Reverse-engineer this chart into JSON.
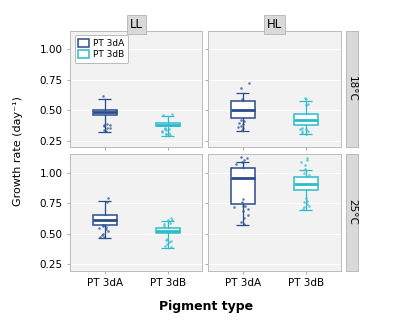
{
  "title": "",
  "xlabel": "Pigment type",
  "ylabel": "Growth rate (day⁻¹)",
  "col_labels": [
    "LL",
    "HL"
  ],
  "row_labels": [
    "18°C",
    "25°C"
  ],
  "x_categories": [
    "PT 3dA",
    "PT 3dB"
  ],
  "legend_labels": [
    "PT 3dA",
    "PT 3dB"
  ],
  "color_3dA": "#2A4B8C",
  "color_3dB": "#2BBCCC",
  "bg_panel": "#F2F2F2",
  "bg_strip": "#D9D9D9",
  "grid_color": "#FFFFFF",
  "panels": {
    "LL_18": {
      "PT3dA": {
        "q1": 0.465,
        "median": 0.49,
        "q3": 0.505,
        "whislo": 0.32,
        "whishi": 0.595,
        "fliers": [
          0.33,
          0.34,
          0.355,
          0.36,
          0.375,
          0.38,
          0.385,
          0.39,
          0.615
        ]
      },
      "PT3dB": {
        "q1": 0.375,
        "median": 0.385,
        "q3": 0.4,
        "whislo": 0.295,
        "whishi": 0.455,
        "fliers": [
          0.3,
          0.305,
          0.31,
          0.315,
          0.325,
          0.33,
          0.34,
          0.345,
          0.35,
          0.355,
          0.46,
          0.47
        ]
      }
    },
    "HL_18": {
      "PT3dA": {
        "q1": 0.44,
        "median": 0.5,
        "q3": 0.575,
        "whislo": 0.335,
        "whishi": 0.64,
        "fliers": [
          0.34,
          0.355,
          0.365,
          0.375,
          0.39,
          0.4,
          0.41,
          0.42,
          0.595,
          0.68,
          0.72
        ]
      },
      "PT3dB": {
        "q1": 0.38,
        "median": 0.42,
        "q3": 0.47,
        "whislo": 0.305,
        "whishi": 0.575,
        "fliers": [
          0.31,
          0.315,
          0.33,
          0.335,
          0.345,
          0.35,
          0.36,
          0.545,
          0.555,
          0.59,
          0.6
        ]
      }
    },
    "LL_25": {
      "PT3dA": {
        "q1": 0.575,
        "median": 0.615,
        "q3": 0.655,
        "whislo": 0.465,
        "whishi": 0.77,
        "fliers": [
          0.47,
          0.475,
          0.49,
          0.5,
          0.52,
          0.535,
          0.545,
          0.555,
          0.565,
          0.575,
          0.76,
          0.79
        ]
      },
      "PT3dB": {
        "q1": 0.505,
        "median": 0.525,
        "q3": 0.545,
        "whislo": 0.385,
        "whishi": 0.605,
        "fliers": [
          0.39,
          0.4,
          0.42,
          0.43,
          0.44,
          0.45,
          0.46,
          0.56,
          0.58,
          0.59,
          0.61,
          0.615,
          0.625
        ]
      }
    },
    "HL_25": {
      "PT3dA": {
        "q1": 0.74,
        "median": 0.955,
        "q3": 1.04,
        "whislo": 0.575,
        "whishi": 1.09,
        "fliers": [
          0.58,
          0.6,
          0.63,
          0.65,
          0.685,
          0.7,
          0.715,
          0.725,
          0.73,
          0.76,
          0.78,
          1.07,
          1.09,
          1.1,
          1.12,
          1.13
        ]
      },
      "PT3dB": {
        "q1": 0.855,
        "median": 0.91,
        "q3": 0.965,
        "whislo": 0.695,
        "whishi": 1.02,
        "fliers": [
          0.7,
          0.715,
          0.73,
          0.745,
          0.76,
          0.77,
          0.795,
          0.98,
          1.0,
          1.03,
          1.06,
          1.09,
          1.105,
          1.12
        ]
      }
    }
  },
  "ylim": [
    0.2,
    1.15
  ],
  "yticks": [
    0.25,
    0.5,
    0.75,
    1.0
  ],
  "box_width": 0.38,
  "jitter_alpha": 0.7,
  "jitter_size": 3.5
}
